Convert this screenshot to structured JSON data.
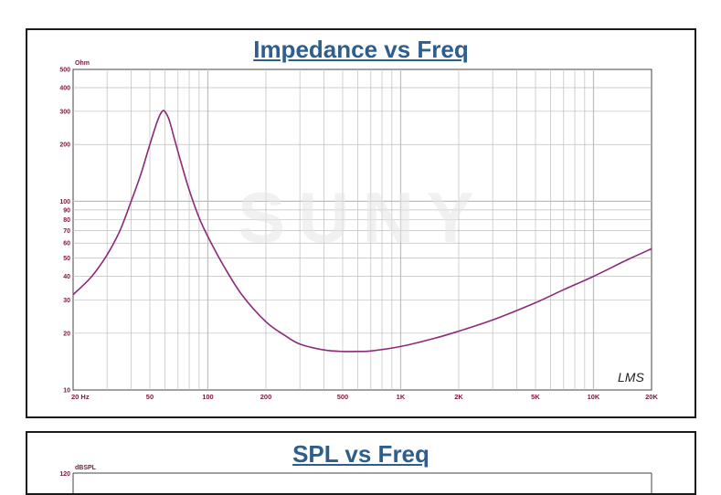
{
  "colors": {
    "curve": "#8b2a7a",
    "grid": "#bdbdbd",
    "axis_text": "#7a1a3a",
    "title": "#2e5e8c"
  },
  "impedance_panel": {
    "title": "Impedance vs Freq",
    "yunit": "Ohm",
    "logo": "LMS",
    "watermark": "SUNY"
  },
  "spl_panel": {
    "title": "SPL vs Freq",
    "yunit": "dBSPL",
    "top_tick": "120"
  },
  "chart_data": [
    {
      "type": "line",
      "title": "Impedance vs Freq",
      "ylabel": "Ohm",
      "xscale": "log",
      "yscale": "log",
      "xlim": [
        20,
        20000
      ],
      "ylim": [
        10,
        500
      ],
      "grid": true,
      "xtick_labels": [
        "20  Hz",
        "50",
        "100",
        "200",
        "500",
        "1K",
        "2K",
        "5K",
        "10K",
        "20K"
      ],
      "ytick_labels": [
        "500",
        "400",
        "300",
        "200",
        "100",
        "90",
        "80",
        "70",
        "60",
        "50",
        "40",
        "30",
        "20",
        "10"
      ],
      "series": [
        {
          "x": [
            20,
            25,
            30,
            35,
            40,
            45,
            50,
            55,
            58,
            60,
            63,
            67,
            72,
            80,
            90,
            100,
            120,
            150,
            200,
            250,
            300,
            400,
            500,
            600,
            700,
            1000,
            1500,
            2000,
            3000,
            5000,
            7000,
            10000,
            15000,
            20000
          ],
          "y": [
            32,
            40,
            52,
            70,
            100,
            140,
            200,
            270,
            300,
            298,
            270,
            215,
            165,
            115,
            82,
            65,
            46,
            32,
            23,
            19.5,
            17.5,
            16.3,
            16.0,
            16.0,
            16.1,
            17.0,
            18.8,
            20.5,
            23.5,
            29,
            34,
            40,
            49,
            56
          ]
        }
      ]
    },
    {
      "type": "line",
      "title": "SPL vs Freq",
      "ylabel": "dBSPL",
      "ytick_labels": [
        "120"
      ],
      "series": []
    }
  ]
}
